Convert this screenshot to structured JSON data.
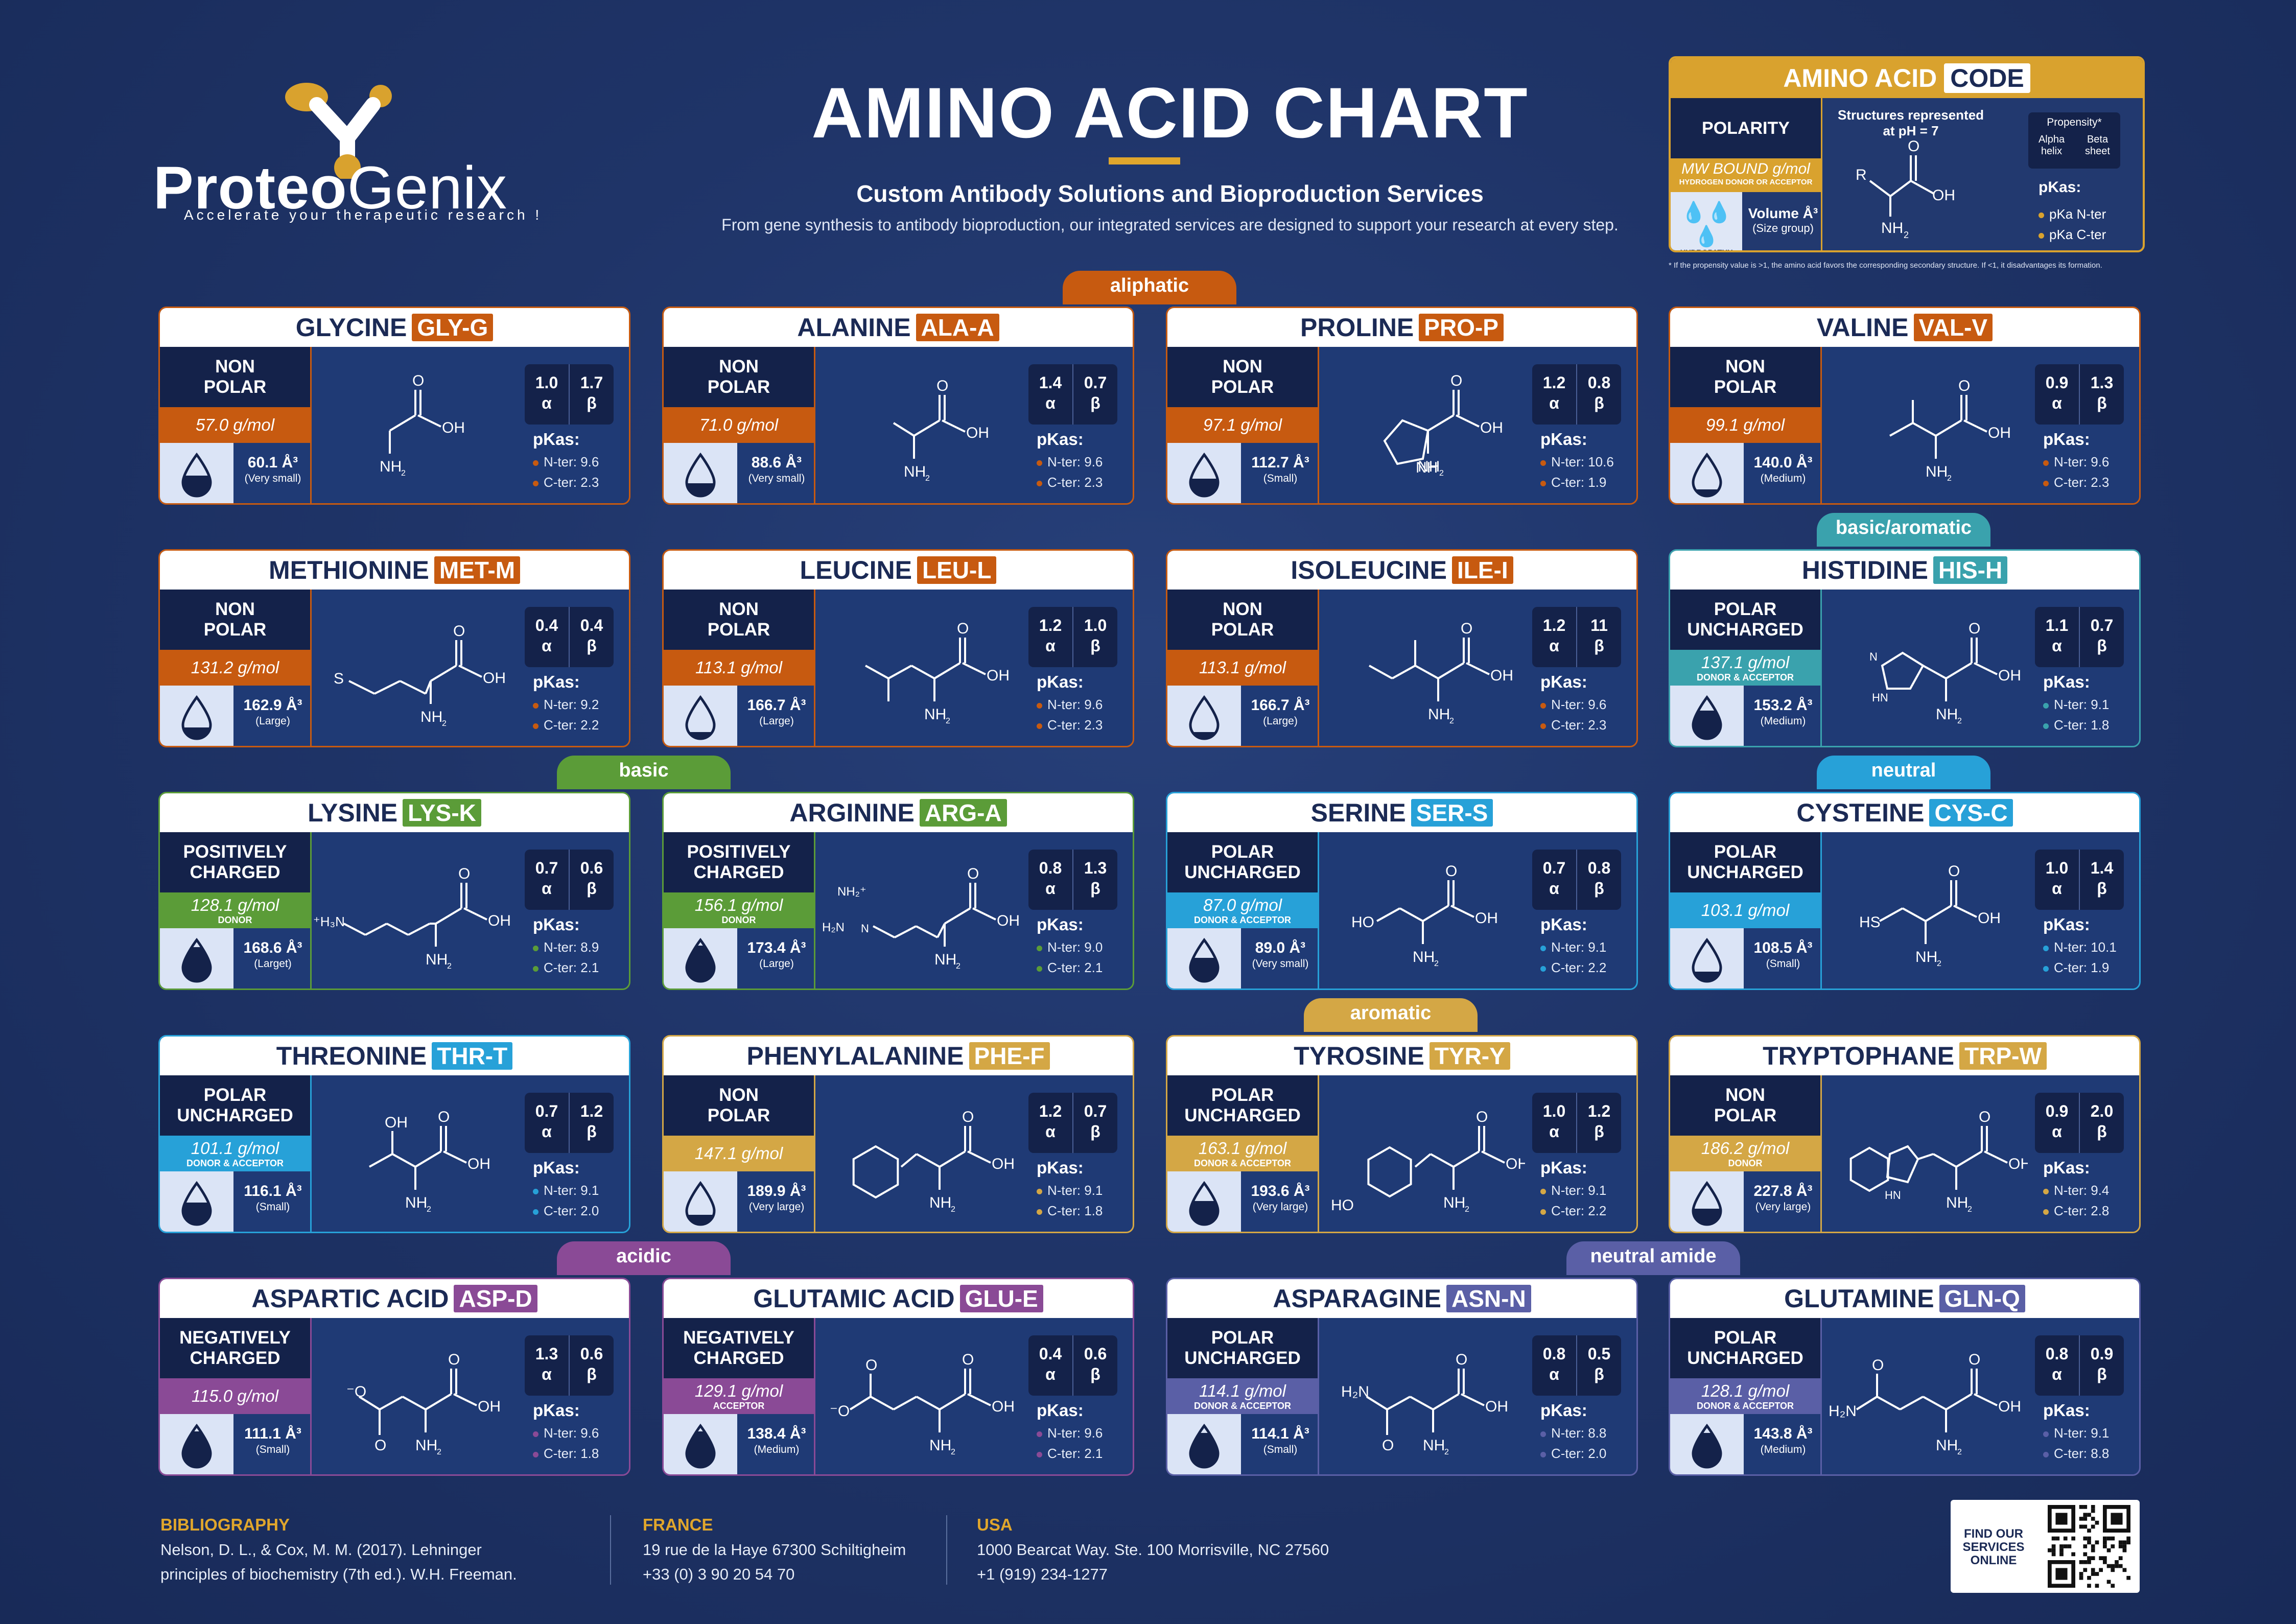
{
  "colors": {
    "background": "#1f3468",
    "panel": "#1f3a75",
    "dark": "#14224a",
    "aliphatic": "#c75a10",
    "basic_aromatic": "#3aa2ad",
    "basic": "#5b9c38",
    "neutral": "#27a1d8",
    "aromatic": "#d4a745",
    "acidic": "#8a4a96",
    "neutral_amide": "#5a5fa6",
    "gold": "#d9a22e"
  },
  "header": {
    "logo_part1": "Proteo",
    "logo_part2": "Genix",
    "logo_tagline": "Accelerate your therapeutic research !",
    "title": "AMINO ACID CHART",
    "subtitle": "Custom Antibody Solutions and Bioproduction Services",
    "description": "From gene synthesis to antibody bioproduction, our integrated services are designed to support your research at every step."
  },
  "legend": {
    "title": "AMINO ACID",
    "code": "CODE",
    "polarity": "POLARITY",
    "mw": "MW BOUND g/mol",
    "mw_sub": "HYDROGEN DONOR OR ACCEPTOR",
    "hydropathy": "HYDROPATHY",
    "volume": "Volume Å³",
    "volume_sub": "(Size group)",
    "structures_line1": "Structures represented",
    "structures_line2": "at pH = 7",
    "propensity": "Propensity*",
    "alpha": "Alpha helix",
    "beta": "Beta sheet",
    "pkas": "pKas:",
    "pka_n": "pKa N-ter",
    "pka_c": "pKa C-ter",
    "footnote": "* If the propensity value is >1, the amino acid favors the corresponding secondary structure. If <1, it disadvantages its formation."
  },
  "categories": [
    {
      "label": "aliphatic",
      "color": "#c75a10"
    },
    {
      "label": "basic/aromatic",
      "color": "#3aa2ad"
    },
    {
      "label": "basic",
      "color": "#5b9c38"
    },
    {
      "label": "neutral",
      "color": "#27a1d8"
    },
    {
      "label": "aromatic",
      "color": "#d4a745"
    },
    {
      "label": "acidic",
      "color": "#8a4a96"
    },
    {
      "label": "neutral amide",
      "color": "#5a5fa6"
    }
  ],
  "amino_acids": [
    {
      "name": "GLYCINE",
      "code": "GLY-G",
      "pol1": "NON",
      "pol2": "POLAR",
      "mw": "57.0 g/mol",
      "hb": "",
      "vol": "60.1 Å³",
      "size": "(Very small)",
      "alpha": "1.0",
      "beta": "1.7",
      "nter": "N-ter: 9.6",
      "cter": "C-ter: 2.3",
      "color": "#c75a10",
      "hyd": 0.45
    },
    {
      "name": "ALANINE",
      "code": "ALA-A",
      "pol1": "NON",
      "pol2": "POLAR",
      "mw": "71.0 g/mol",
      "hb": "",
      "vol": "88.6 Å³",
      "size": "(Very small)",
      "alpha": "1.4",
      "beta": "0.7",
      "nter": "N-ter: 9.6",
      "cter": "C-ter: 2.3",
      "color": "#c75a10",
      "hyd": 0.2
    },
    {
      "name": "PROLINE",
      "code": "PRO-P",
      "pol1": "NON",
      "pol2": "POLAR",
      "mw": "97.1 g/mol",
      "hb": "",
      "vol": "112.7 Å³",
      "size": "(Small)",
      "alpha": "1.2",
      "beta": "0.8",
      "nter": "N-ter: 10.6",
      "cter": "C-ter: 1.9",
      "color": "#c75a10",
      "hyd": 0.35
    },
    {
      "name": "VALINE",
      "code": "VAL-V",
      "pol1": "NON",
      "pol2": "POLAR",
      "mw": "99.1 g/mol",
      "hb": "",
      "vol": "140.0 Å³",
      "size": "(Medium)",
      "alpha": "0.9",
      "beta": "1.3",
      "nter": "N-ter: 9.6",
      "cter": "C-ter: 2.3",
      "color": "#c75a10",
      "hyd": 0.0
    },
    {
      "name": "METHIONINE",
      "code": "MET-M",
      "pol1": "NON",
      "pol2": "POLAR",
      "mw": "131.2 g/mol",
      "hb": "",
      "vol": "162.9 Å³",
      "size": "(Large)",
      "alpha": "0.4",
      "beta": "0.4",
      "nter": "N-ter: 9.2",
      "cter": "C-ter: 2.2",
      "color": "#c75a10",
      "hyd": 0.15
    },
    {
      "name": "LEUCINE",
      "code": "LEU-L",
      "pol1": "NON",
      "pol2": "POLAR",
      "mw": "113.1 g/mol",
      "hb": "",
      "vol": "166.7 Å³",
      "size": "(Large)",
      "alpha": "1.2",
      "beta": "1.0",
      "nter": "N-ter: 9.6",
      "cter": "C-ter: 2.3",
      "color": "#c75a10",
      "hyd": 0.0
    },
    {
      "name": "ISOLEUCINE",
      "code": "ILE-I",
      "pol1": "NON",
      "pol2": "POLAR",
      "mw": "113.1 g/mol",
      "hb": "",
      "vol": "166.7 Å³",
      "size": "(Large)",
      "alpha": "1.2",
      "beta": "11",
      "nter": "N-ter: 9.6",
      "cter": "C-ter: 2.3",
      "color": "#c75a10",
      "hyd": 0.0
    },
    {
      "name": "HISTIDINE",
      "code": "HIS-H",
      "pol1": "POLAR",
      "pol2": "UNCHARGED",
      "mw": "137.1 g/mol",
      "hb": "DONOR & ACCEPTOR",
      "vol": "153.2 Å³",
      "size": "(Medium)",
      "alpha": "1.1",
      "beta": "0.7",
      "nter": "N-ter: 9.1",
      "cter": "C-ter: 1.8",
      "color": "#3aa2ad",
      "hyd": 0.7
    },
    {
      "name": "LYSINE",
      "code": "LYS-K",
      "pol1": "POSITIVELY",
      "pol2": "CHARGED",
      "mw": "128.1 g/mol",
      "hb": "DONOR",
      "vol": "168.6 Å³",
      "size": "(Larget)",
      "alpha": "0.7",
      "beta": "0.6",
      "nter": "N-ter: 8.9",
      "cter": "C-ter: 2.1",
      "color": "#5b9c38",
      "hyd": 0.9
    },
    {
      "name": "ARGININE",
      "code": "ARG-A",
      "pol1": "POSITIVELY",
      "pol2": "CHARGED",
      "mw": "156.1 g/mol",
      "hb": "DONOR",
      "vol": "173.4 Å³",
      "size": "(Large)",
      "alpha": "0.8",
      "beta": "1.3",
      "nter": "N-ter: 9.0",
      "cter": "C-ter: 2.1",
      "color": "#5b9c38",
      "hyd": 0.95
    },
    {
      "name": "SERINE",
      "code": "SER-S",
      "pol1": "POLAR",
      "pol2": "UNCHARGED",
      "mw": "87.0 g/mol",
      "hb": "DONOR & ACCEPTOR",
      "vol": "89.0 Å³",
      "size": "(Very small)",
      "alpha": "0.7",
      "beta": "0.8",
      "nter": "N-ter: 9.1",
      "cter": "C-ter: 2.2",
      "color": "#27a1d8",
      "hyd": 0.55
    },
    {
      "name": "CYSTEINE",
      "code": "CYS-C",
      "pol1": "POLAR",
      "pol2": "UNCHARGED",
      "mw": "103.1 g/mol",
      "hb": "",
      "vol": "108.5 Å³",
      "size": "(Small)",
      "alpha": "1.0",
      "beta": "1.4",
      "nter": "N-ter: 10.1",
      "cter": "C-ter: 1.9",
      "color": "#27a1d8",
      "hyd": 0.1
    },
    {
      "name": "THREONINE",
      "code": "THR-T",
      "pol1": "POLAR",
      "pol2": "UNCHARGED",
      "mw": "101.1 g/mol",
      "hb": "DONOR & ACCEPTOR",
      "vol": "116.1 Å³",
      "size": "(Small)",
      "alpha": "0.7",
      "beta": "1.2",
      "nter": "N-ter: 9.1",
      "cter": "C-ter: 2.0",
      "color": "#27a1d8",
      "hyd": 0.5
    },
    {
      "name": "PHENYLALANINE",
      "code": "PHE-F",
      "pol1": "NON",
      "pol2": "POLAR",
      "mw": "147.1 g/mol",
      "hb": "",
      "vol": "189.9 Å³",
      "size": "(Very large)",
      "alpha": "1.2",
      "beta": "0.7",
      "nter": "N-ter: 9.1",
      "cter": "C-ter: 1.8",
      "color": "#d4a745",
      "hyd": 0.1
    },
    {
      "name": "TYROSINE",
      "code": "TYR-Y",
      "pol1": "POLAR",
      "pol2": "UNCHARGED",
      "mw": "163.1 g/mol",
      "hb": "DONOR & ACCEPTOR",
      "vol": "193.6 Å³",
      "size": "(Very large)",
      "alpha": "1.0",
      "beta": "1.2",
      "nter": "N-ter: 9.1",
      "cter": "C-ter: 2.2",
      "color": "#d4a745",
      "hyd": 0.55
    },
    {
      "name": "TRYPTOPHANE",
      "code": "TRP-W",
      "pol1": "NON",
      "pol2": "POLAR",
      "mw": "186.2 g/mol",
      "hb": "DONOR",
      "vol": "227.8 Å³",
      "size": "(Very large)",
      "alpha": "0.9",
      "beta": "2.0",
      "nter": "N-ter: 9.4",
      "cter": "C-ter: 2.8",
      "color": "#d4a745",
      "hyd": 0.3
    },
    {
      "name": "ASPARTIC ACID",
      "code": "ASP-D",
      "pol1": "NEGATIVELY",
      "pol2": "CHARGED",
      "mw": "115.0 g/mol",
      "hb": "",
      "vol": "111.1 Å³",
      "size": "(Small)",
      "alpha": "1.3",
      "beta": "0.6",
      "nter": "N-ter: 9.6",
      "cter": "C-ter: 1.8",
      "color": "#8a4a96",
      "hyd": 0.95
    },
    {
      "name": "GLUTAMIC ACID",
      "code": "GLU-E",
      "pol1": "NEGATIVELY",
      "pol2": "CHARGED",
      "mw": "129.1 g/mol",
      "hb": "ACCEPTOR",
      "vol": "138.4 Å³",
      "size": "(Medium)",
      "alpha": "0.4",
      "beta": "0.6",
      "nter": "N-ter: 9.6",
      "cter": "C-ter: 2.1",
      "color": "#8a4a96",
      "hyd": 0.95
    },
    {
      "name": "ASPARAGINE",
      "code": "ASN-N",
      "pol1": "POLAR",
      "pol2": "UNCHARGED",
      "mw": "114.1 g/mol",
      "hb": "DONOR & ACCEPTOR",
      "vol": "114.1 Å³",
      "size": "(Small)",
      "alpha": "0.8",
      "beta": "0.5",
      "nter": "N-ter: 8.8",
      "cter": "C-ter: 2.0",
      "color": "#5a5fa6",
      "hyd": 0.9
    },
    {
      "name": "GLUTAMINE",
      "code": "GLN-Q",
      "pol1": "POLAR",
      "pol2": "UNCHARGED",
      "mw": "128.1 g/mol",
      "hb": "DONOR & ACCEPTOR",
      "vol": "143.8 Å³",
      "size": "(Medium)",
      "alpha": "0.8",
      "beta": "0.9",
      "nter": "N-ter: 9.1",
      "cter": "C-ter: 8.8",
      "color": "#5a5fa6",
      "hyd": 0.9
    }
  ],
  "footer": {
    "bib_title": "BIBLIOGRAPHY",
    "bib_1": "Nelson, D. L., & Cox, M. M. (2017). Lehninger",
    "bib_2": "principles of biochemistry (7th ed.). W.H. Freeman.",
    "fr_title": "FRANCE",
    "fr_1": "19 rue de la Haye 67300 Schiltigheim",
    "fr_2": "+33 (0) 3 90 20 54 70",
    "us_title": "USA",
    "us_1": "1000 Bearcat Way. Ste. 100 Morrisville, NC 27560",
    "us_2": "+1 (919) 234-1277",
    "qr_text": "FIND OUR SERVICES ONLINE"
  }
}
